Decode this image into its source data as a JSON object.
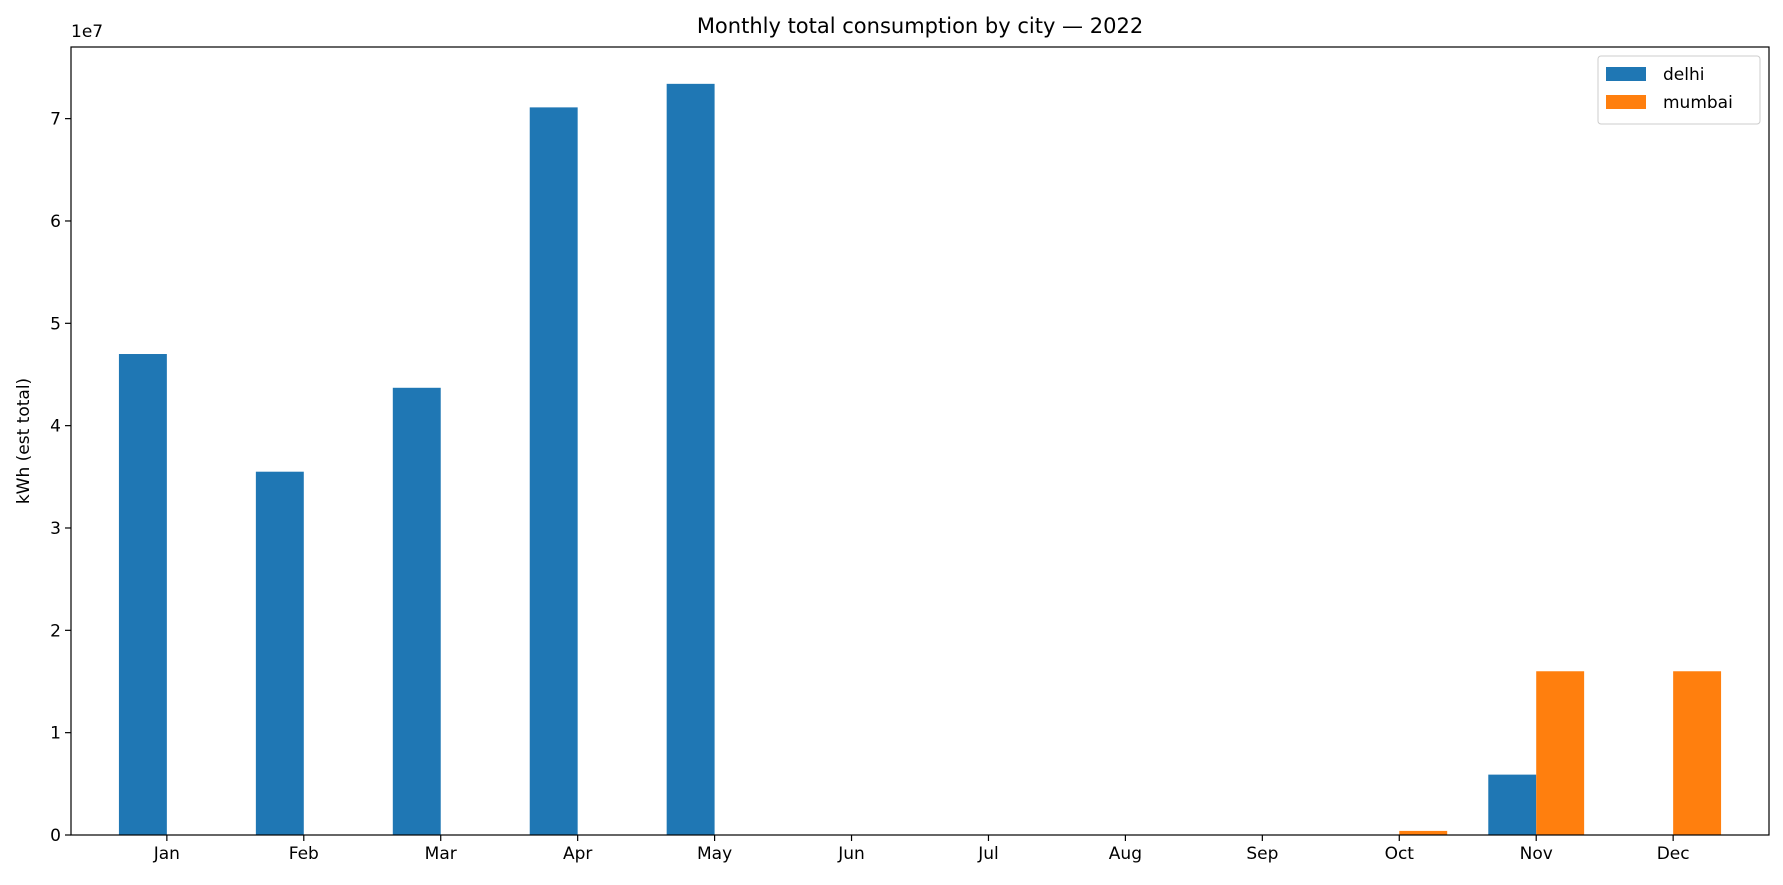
{
  "chart_data": {
    "type": "bar",
    "title": "Monthly total consumption by city — 2022",
    "xlabel": "",
    "ylabel": "kWh (est total)",
    "y_offset_label": "1e7",
    "categories": [
      "Jan",
      "Feb",
      "Mar",
      "Apr",
      "May",
      "Jun",
      "Jul",
      "Aug",
      "Sep",
      "Oct",
      "Nov",
      "Dec"
    ],
    "series": [
      {
        "name": "delhi",
        "color": "#1f77b4",
        "values": [
          47000000,
          35500000,
          43700000,
          71100000,
          73400000,
          0,
          0,
          0,
          0,
          0,
          5900000,
          0
        ]
      },
      {
        "name": "mumbai",
        "color": "#ff7f0e",
        "values": [
          0,
          0,
          0,
          0,
          0,
          0,
          0,
          0,
          0,
          400000,
          16000000,
          16000000
        ]
      }
    ],
    "yticks": [
      0,
      10000000,
      20000000,
      30000000,
      40000000,
      50000000,
      60000000,
      70000000
    ],
    "ytick_labels": [
      "0",
      "1",
      "2",
      "3",
      "4",
      "5",
      "6",
      "7"
    ],
    "ylim": [
      0,
      77000000
    ],
    "grid": false,
    "legend_position": "top-right"
  }
}
